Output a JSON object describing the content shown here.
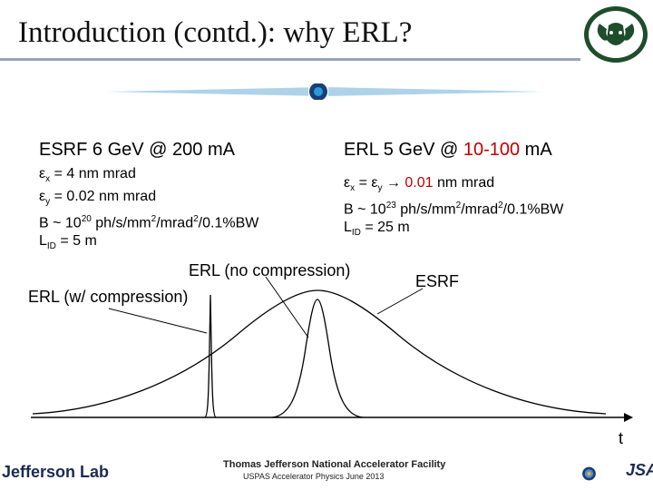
{
  "title": "Introduction (contd.): why ERL?",
  "esrf": {
    "heading": "ESRF 6 GeV @ 200 mA",
    "lines": {
      "ex_sym": "ε",
      "ex_sub": "x",
      "ex_val": " = 4 nm mrad",
      "ey_sym": "ε",
      "ey_sub": "y",
      "ey_val": " = 0.02 nm mrad",
      "b_pre": "B ~ 10",
      "b_exp": "20",
      "b_post1": " ph/s/mm",
      "b_sq1": "2",
      "b_post2": "/mrad",
      "b_sq2": "2",
      "b_post3": "/0.1%BW",
      "l_sym": "L",
      "l_sub": "ID",
      "l_val": " = 5 m"
    }
  },
  "erl": {
    "heading_prefix": "ERL 5 GeV @ ",
    "heading_accent": "10-100",
    "heading_suffix": " mA",
    "lines": {
      "ex_sym": "ε",
      "ex_sub": "x",
      "eq": " = ε",
      "ey_sub": "y",
      "arrow": " → ",
      "e_val": "0.01",
      "e_unit": " nm mrad",
      "b_pre": "B ~ 10",
      "b_exp": "23",
      "b_post1": " ph/s/mm",
      "b_sq1": "2",
      "b_post2": "/mrad",
      "b_sq2": "2",
      "b_post3": "/0.1%BW",
      "l_sym": "L",
      "l_sub": "ID",
      "l_val": " = 25 m"
    }
  },
  "plot": {
    "label_erl_nocomp": "ERL (no compression)",
    "label_erl_comp": "ERL (w/ compression)",
    "label_esrf": "ESRF",
    "axis_label": "t"
  },
  "footer": {
    "lab": "Jefferson Lab",
    "facility": "Thomas Jefferson National Accelerator Facility",
    "course": "USPAS Accelerator Physics June 2013",
    "jsa": "JSA"
  },
  "colors": {
    "accent": "#c00000",
    "bar": "#aed3e8",
    "dot": "#1a5e9e"
  }
}
